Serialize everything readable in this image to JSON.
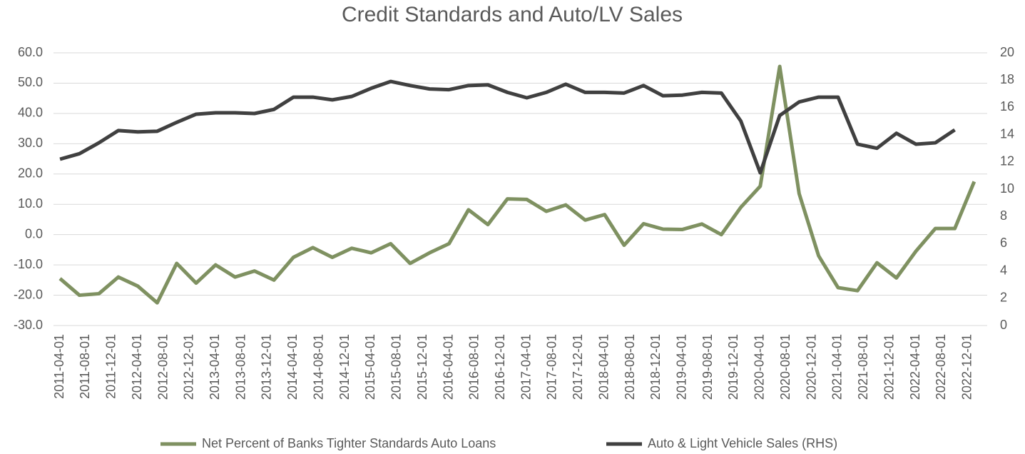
{
  "chart_data": {
    "type": "line",
    "title": "Credit Standards and Auto/LV Sales",
    "x": [
      "2011-04-01",
      "2011-07-01",
      "2011-10-01",
      "2012-01-01",
      "2012-04-01",
      "2012-07-01",
      "2012-10-01",
      "2013-01-01",
      "2013-04-01",
      "2013-07-01",
      "2013-10-01",
      "2014-01-01",
      "2014-04-01",
      "2014-07-01",
      "2014-10-01",
      "2015-01-01",
      "2015-04-01",
      "2015-07-01",
      "2015-10-01",
      "2016-01-01",
      "2016-04-01",
      "2016-07-01",
      "2016-10-01",
      "2017-01-01",
      "2017-04-01",
      "2017-07-01",
      "2017-10-01",
      "2018-01-01",
      "2018-04-01",
      "2018-07-01",
      "2018-10-01",
      "2019-01-01",
      "2019-04-01",
      "2019-07-01",
      "2019-10-01",
      "2020-01-01",
      "2020-04-01",
      "2020-07-01",
      "2020-10-01",
      "2021-01-01",
      "2021-04-01",
      "2021-07-01",
      "2021-10-01",
      "2022-01-01",
      "2022-04-01",
      "2022-07-01",
      "2022-10-01",
      "2023-01-01"
    ],
    "series": [
      {
        "name": "Net Percent of Banks Tighter Standards Auto Loans",
        "color": "#7f9161",
        "axis": "y",
        "values": [
          -14.5,
          -20,
          -19.5,
          -14,
          -17,
          -22.5,
          -9.5,
          -16,
          -10,
          -14,
          -12,
          -15,
          -7.5,
          -4.3,
          -7.5,
          -4.5,
          -6,
          -3,
          -9.5,
          -6,
          -3,
          8.2,
          3.3,
          11.8,
          11.6,
          7.7,
          9.8,
          4.8,
          6.6,
          -3.5,
          3.6,
          1.8,
          1.7,
          3.5,
          0,
          9,
          16,
          55.5,
          13.5,
          -7,
          -17.5,
          -18.5,
          -9.3,
          -14.3,
          -5.5,
          2,
          2,
          17.5
        ]
      },
      {
        "name": "Auto & Light Vehicle Sales (RHS)",
        "color": "#404040",
        "axis": "y2",
        "values": [
          12.2,
          12.6,
          13.4,
          14.3,
          14.2,
          14.25,
          14.9,
          15.5,
          15.6,
          15.6,
          15.55,
          15.85,
          16.75,
          16.75,
          16.55,
          16.8,
          17.4,
          17.9,
          17.6,
          17.35,
          17.3,
          17.6,
          17.65,
          17.1,
          16.7,
          17.1,
          17.7,
          17.1,
          17.1,
          17.05,
          17.6,
          16.85,
          16.9,
          17.1,
          17.05,
          15,
          11.2,
          15.4,
          16.4,
          16.75,
          16.75,
          13.3,
          13,
          14.1,
          13.3,
          13.4,
          14.35,
          null
        ]
      }
    ],
    "xlim": [
      "2011-03-01",
      "2023-03-01"
    ],
    "xticks": [
      "2011-04-01",
      "2011-08-01",
      "2011-12-01",
      "2012-04-01",
      "2012-08-01",
      "2012-12-01",
      "2013-04-01",
      "2013-08-01",
      "2013-12-01",
      "2014-04-01",
      "2014-08-01",
      "2014-12-01",
      "2015-04-01",
      "2015-08-01",
      "2015-12-01",
      "2016-04-01",
      "2016-08-01",
      "2016-12-01",
      "2017-04-01",
      "2017-08-01",
      "2017-12-01",
      "2018-04-01",
      "2018-08-01",
      "2018-12-01",
      "2019-04-01",
      "2019-08-01",
      "2019-12-01",
      "2020-04-01",
      "2020-08-01",
      "2020-12-01",
      "2021-04-01",
      "2021-08-01",
      "2021-12-01",
      "2022-04-01",
      "2022-08-01",
      "2022-12-01"
    ],
    "ylim": [
      -30,
      60
    ],
    "yticks": [
      {
        "value": -30,
        "label": "-30.0"
      },
      {
        "value": -20,
        "label": "-20.0"
      },
      {
        "value": -10,
        "label": "-10.0"
      },
      {
        "value": 0,
        "label": "0.0"
      },
      {
        "value": 10,
        "label": "10.0"
      },
      {
        "value": 20,
        "label": "20.0"
      },
      {
        "value": 30,
        "label": "30.0"
      },
      {
        "value": 40,
        "label": "40.0"
      },
      {
        "value": 50,
        "label": "50.0"
      },
      {
        "value": 60,
        "label": "60.0"
      }
    ],
    "y2lim": [
      0,
      20
    ],
    "y2ticks": [
      0,
      2,
      4,
      6,
      8,
      10,
      12,
      14,
      16,
      18,
      20
    ],
    "grid": true,
    "legend": "bottom"
  }
}
